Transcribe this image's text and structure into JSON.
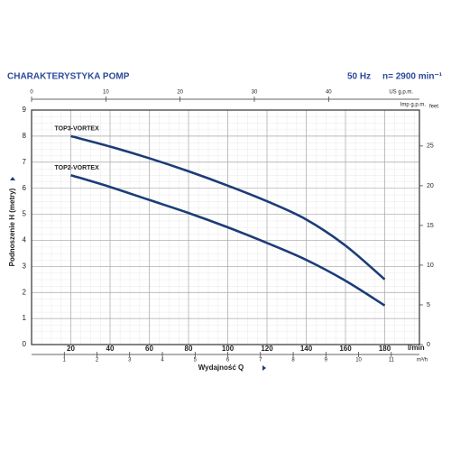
{
  "chart_data": {
    "type": "line",
    "title": "CHARAKTERYSTYKA POMP",
    "frequency": "50 Hz",
    "speed": "n= 2900 min⁻¹",
    "y_label": "Podnoszenie H (metry)",
    "x_label": "Wydajność Q",
    "x_unit": "l/min",
    "x": [
      20,
      40,
      60,
      80,
      100,
      120,
      140,
      160,
      180
    ],
    "series": [
      {
        "name": "TOP3-VORTEX",
        "color": "#1d3c78",
        "values": [
          8.0,
          7.6,
          7.15,
          6.65,
          6.1,
          5.5,
          4.8,
          3.8,
          2.5
        ]
      },
      {
        "name": "TOP2-VORTEX",
        "color": "#1d3c78",
        "values": [
          6.5,
          6.05,
          5.55,
          5.05,
          4.5,
          3.9,
          3.25,
          2.45,
          1.5
        ]
      }
    ],
    "xlim": [
      0,
      197.7
    ],
    "xticks": [
      20,
      40,
      60,
      80,
      100,
      120,
      140,
      160,
      180
    ],
    "ylim": [
      0,
      9
    ],
    "yticks": [
      0,
      1,
      2,
      3,
      4,
      5,
      6,
      7,
      8,
      9
    ],
    "grid": true,
    "top_axis": {
      "label": "US g.p.m.",
      "lim": [
        0,
        52.23
      ],
      "ticks": [
        0,
        10,
        20,
        30,
        40
      ]
    },
    "top_axis_2": {
      "label": "Imp g.p.m."
    },
    "bottom_axis_2": {
      "label": "m³/h",
      "lim": [
        0,
        11.86
      ],
      "ticks": [
        1,
        2,
        3,
        4,
        5,
        6,
        7,
        8,
        9,
        10,
        11
      ]
    },
    "right_axis": {
      "label": "feet",
      "lim": [
        0,
        29.53
      ],
      "ticks": [
        0,
        5,
        10,
        15,
        20,
        25
      ]
    }
  }
}
